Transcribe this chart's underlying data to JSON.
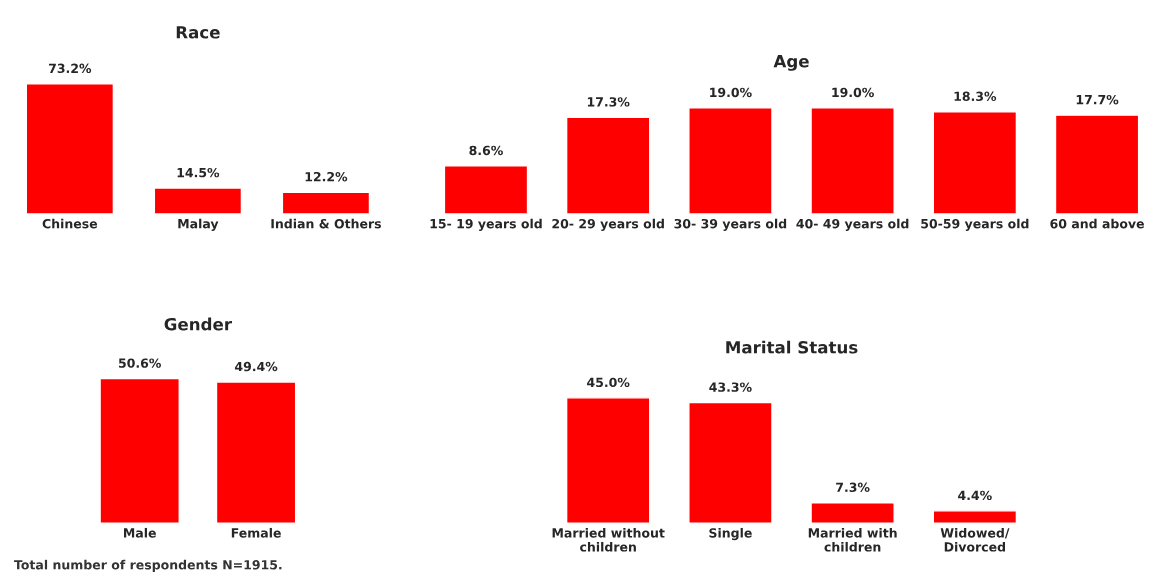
{
  "chart_data": [
    {
      "type": "bar",
      "title": "Race",
      "categories": [
        "Chinese",
        "Malay",
        "Indian & Others"
      ],
      "values": [
        73.2,
        14.5,
        12.2
      ],
      "value_labels": [
        "73.2%",
        "14.5%",
        "12.2%"
      ],
      "color": "#ff0000",
      "tick_labels": "x",
      "grid": false,
      "legend": false,
      "annotations": [
        "Total number of respondents N=1915."
      ]
    },
    {
      "type": "bar",
      "title": "Age",
      "categories": [
        "15- 19 years old",
        "20- 29 years old",
        "30- 39 years old",
        "40- 49 years old",
        "50-59 years old",
        "60 and above"
      ],
      "values": [
        8.6,
        17.3,
        19.0,
        19.0,
        18.3,
        17.7
      ],
      "value_labels": [
        "8.6%",
        "17.3%",
        "19.0%",
        "19.0%",
        "18.3%",
        "17.7%"
      ],
      "color": "#ff0000",
      "tick_labels": "x",
      "grid": false,
      "legend": false
    },
    {
      "type": "bar",
      "title": "Gender",
      "categories": [
        "Male",
        "Female"
      ],
      "values": [
        50.6,
        49.4
      ],
      "value_labels": [
        "50.6%",
        "49.4%"
      ],
      "color": "#ff0000",
      "tick_labels": "x",
      "grid": false,
      "legend": false
    },
    {
      "type": "bar",
      "title": "Marital Status",
      "categories": [
        "Married without\nchildren",
        "Single",
        "Married with\nchildren",
        "Widowed/\nDivorced"
      ],
      "values": [
        45.0,
        43.3,
        7.3,
        4.4
      ],
      "value_labels": [
        "45.0%",
        "43.3%",
        "7.3%",
        "4.4%"
      ],
      "color": "#ff0000",
      "tick_labels": "x",
      "grid": false,
      "legend": false
    }
  ]
}
